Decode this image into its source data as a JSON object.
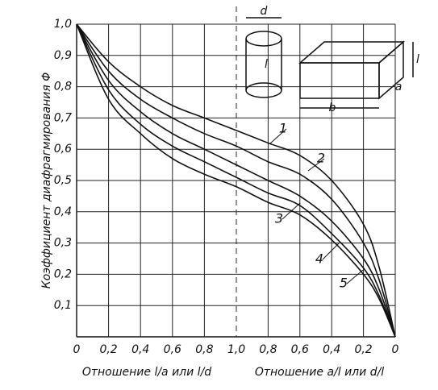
{
  "chart_data": {
    "type": "line",
    "ylabel": "Коэффициент диафрагмирования Φ",
    "xlabel": "Отношение l/a или l/d",
    "x2label": "Отношение a/l или d/l",
    "x": [
      0,
      0.2,
      0.4,
      0.6,
      0.8,
      1.0
    ],
    "x2": [
      0.8,
      0.6,
      0.4,
      0.2,
      0.1,
      0
    ],
    "xlim": [
      0,
      1.0
    ],
    "x2lim": [
      1.0,
      0
    ],
    "ylim": [
      0,
      1.0
    ],
    "xticks": [
      0,
      {
        "value": 0.2,
        "label": "0,2"
      },
      {
        "value": 0.4,
        "label": "0,4"
      },
      {
        "value": 0.6,
        "label": "0,6"
      },
      {
        "value": 0.8,
        "label": "0,8"
      },
      {
        "value": 1.0,
        "label": "1,0"
      }
    ],
    "x2ticks": [
      {
        "value": 0.8,
        "label": "0,8"
      },
      {
        "value": 0.6,
        "label": "0,6"
      },
      {
        "value": 0.4,
        "label": "0,4"
      },
      {
        "value": 0.2,
        "label": "0,2"
      },
      0
    ],
    "yticks": [
      {
        "value": 0.1,
        "label": "0,1"
      },
      {
        "value": 0.2,
        "label": "0,2"
      },
      {
        "value": 0.3,
        "label": "0,3"
      },
      {
        "value": 0.4,
        "label": "0,4"
      },
      {
        "value": 0.5,
        "label": "0,5"
      },
      {
        "value": 0.6,
        "label": "0,6"
      },
      {
        "value": 0.7,
        "label": "0,7"
      },
      {
        "value": 0.8,
        "label": "0,8"
      },
      {
        "value": 0.9,
        "label": "0,9"
      },
      {
        "value": 1.0,
        "label": "1,0"
      }
    ],
    "grid": true,
    "series": [
      {
        "name": "1",
        "color": "#111111",
        "values": [
          1.0,
          0.88,
          0.8,
          0.74,
          0.7,
          0.66
        ],
        "values2": [
          0.62,
          0.58,
          0.5,
          0.36,
          0.22,
          0
        ]
      },
      {
        "name": "2",
        "color": "#111111",
        "values": [
          1.0,
          0.85,
          0.76,
          0.7,
          0.65,
          0.61
        ],
        "values2": [
          0.56,
          0.52,
          0.44,
          0.3,
          0.18,
          0
        ]
      },
      {
        "name": "3",
        "color": "#111111",
        "values": [
          1.0,
          0.82,
          0.72,
          0.65,
          0.6,
          0.55
        ],
        "values2": [
          0.5,
          0.45,
          0.37,
          0.25,
          0.15,
          0
        ]
      },
      {
        "name": "4",
        "color": "#111111",
        "values": [
          1.0,
          0.79,
          0.68,
          0.61,
          0.56,
          0.51
        ],
        "values2": [
          0.46,
          0.42,
          0.33,
          0.22,
          0.13,
          0
        ]
      },
      {
        "name": "5",
        "color": "#111111",
        "values": [
          1.0,
          0.76,
          0.65,
          0.57,
          0.52,
          0.48
        ],
        "values2": [
          0.43,
          0.39,
          0.31,
          0.2,
          0.12,
          0
        ]
      }
    ],
    "inset_labels": [
      "d",
      "l",
      "b",
      "a"
    ]
  }
}
